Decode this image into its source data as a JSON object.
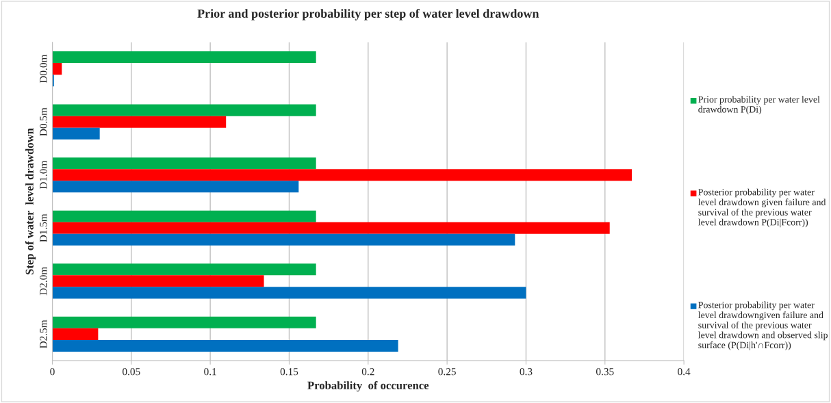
{
  "chart_data": {
    "type": "bar",
    "orientation": "horizontal",
    "title": "Prior and posterior probability per step of water level drawdown",
    "xlabel": "Probability  of occurence",
    "ylabel": "Step of water  level drawdown",
    "categories": [
      "D0.0m",
      "D0.5m",
      "D1.0m",
      "D1.5m",
      "D2.0m",
      "D2.5m"
    ],
    "series": [
      {
        "name": "Prior probability per water level drawdown P(Di)",
        "color": "#00b050",
        "values": [
          0.167,
          0.167,
          0.167,
          0.167,
          0.167,
          0.167
        ]
      },
      {
        "name": "Posterior probability per water level drawdown given failure and survival of the previous water level drawdown P(Di|Fcorr))",
        "color": "#ff0000",
        "values": [
          0.006,
          0.11,
          0.367,
          0.353,
          0.134,
          0.029
        ]
      },
      {
        "name": "Posterior probability per water level drawdowngiven failure and survival of the previous water level drawdown and observed slip surface (P(Di|h'∩Fcorr))",
        "color": "#0070c0",
        "values": [
          0.001,
          0.03,
          0.156,
          0.293,
          0.3,
          0.219
        ]
      }
    ],
    "xlim": [
      0,
      0.4
    ],
    "xticks": [
      0,
      0.05,
      0.1,
      0.15,
      0.2,
      0.25,
      0.3,
      0.35,
      0.4
    ],
    "grid": "x",
    "legend": "right"
  }
}
